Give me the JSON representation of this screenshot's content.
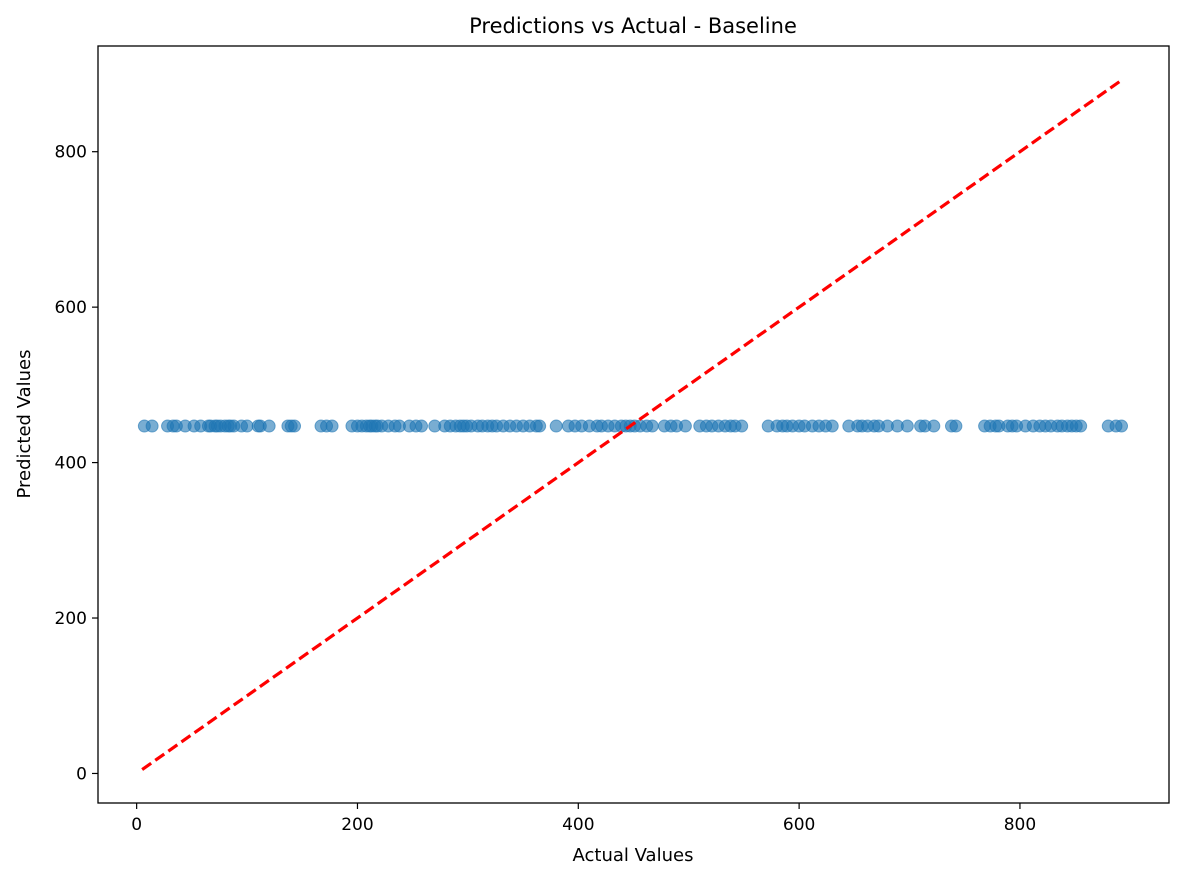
{
  "chart_data": {
    "type": "scatter",
    "title": "Predictions vs Actual - Baseline",
    "xlabel": "Actual Values",
    "ylabel": "Predicted Values",
    "xlim": [
      -35,
      935
    ],
    "ylim": [
      -38,
      936
    ],
    "xticks": [
      0,
      200,
      400,
      600,
      800
    ],
    "yticks": [
      0,
      200,
      400,
      600,
      800
    ],
    "grid": false,
    "legend": "none",
    "colors": {
      "points": "#1f77b4",
      "reference_line": "#ff0000",
      "axes": "#000000"
    },
    "reference_line": {
      "style": "dashed",
      "x": [
        5,
        890
      ],
      "y": [
        5,
        890
      ]
    },
    "series": [
      {
        "x": [
          7,
          14,
          28,
          33,
          36,
          44,
          52,
          58,
          65,
          67,
          71,
          73,
          76,
          80,
          83,
          85,
          88,
          95,
          100,
          110,
          112,
          120,
          137,
          140,
          143,
          167,
          172,
          177,
          195,
          200,
          204,
          208,
          211,
          213,
          216,
          218,
          222,
          228,
          234,
          238,
          247,
          253,
          258,
          270,
          279,
          284,
          289,
          293,
          296,
          299,
          303,
          309,
          313,
          318,
          322,
          326,
          332,
          338,
          344,
          350,
          356,
          362,
          365,
          380,
          391,
          397,
          403,
          410,
          417,
          421,
          427,
          433,
          439,
          443,
          447,
          451,
          456,
          462,
          467,
          478,
          484,
          489,
          497,
          510,
          516,
          521,
          527,
          533,
          538,
          542,
          548,
          572,
          580,
          585,
          589,
          594,
          600,
          605,
          612,
          618,
          624,
          630,
          645,
          653,
          657,
          662,
          668,
          672,
          680,
          689,
          698,
          710,
          714,
          722,
          738,
          742,
          768,
          773,
          778,
          781,
          789,
          793,
          797,
          805,
          812,
          818,
          823,
          828,
          834,
          838,
          843,
          847,
          851,
          855,
          880,
          887,
          892
        ],
        "y": [
          447,
          447,
          447,
          447,
          447,
          447,
          447,
          447,
          447,
          447,
          447,
          447,
          447,
          447,
          447,
          447,
          447,
          447,
          447,
          447,
          447,
          447,
          447,
          447,
          447,
          447,
          447,
          447,
          447,
          447,
          447,
          447,
          447,
          447,
          447,
          447,
          447,
          447,
          447,
          447,
          447,
          447,
          447,
          447,
          447,
          447,
          447,
          447,
          447,
          447,
          447,
          447,
          447,
          447,
          447,
          447,
          447,
          447,
          447,
          447,
          447,
          447,
          447,
          447,
          447,
          447,
          447,
          447,
          447,
          447,
          447,
          447,
          447,
          447,
          447,
          447,
          447,
          447,
          447,
          447,
          447,
          447,
          447,
          447,
          447,
          447,
          447,
          447,
          447,
          447,
          447,
          447,
          447,
          447,
          447,
          447,
          447,
          447,
          447,
          447,
          447,
          447,
          447,
          447,
          447,
          447,
          447,
          447,
          447,
          447,
          447,
          447,
          447,
          447,
          447,
          447,
          447,
          447,
          447,
          447,
          447,
          447,
          447,
          447,
          447,
          447,
          447,
          447,
          447,
          447,
          447,
          447,
          447,
          447,
          447,
          447,
          447
        ]
      }
    ]
  }
}
